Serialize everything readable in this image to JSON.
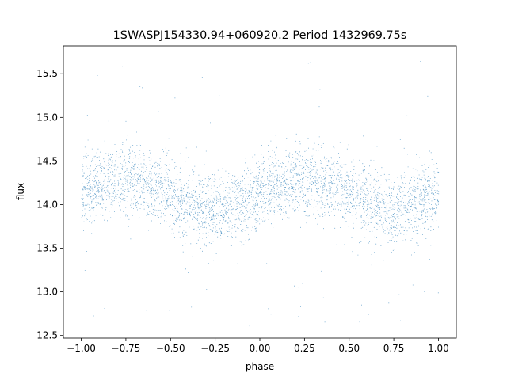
{
  "chart_data": {
    "type": "scatter",
    "title": "1SWASPJ154330.94+060920.2 Period 1432969.75s",
    "xlabel": "phase",
    "ylabel": "flux",
    "xlim": [
      -1.1,
      1.1
    ],
    "ylim": [
      12.47,
      15.82
    ],
    "x_ticks": [
      -1.0,
      -0.75,
      -0.5,
      -0.25,
      0.0,
      0.25,
      0.5,
      0.75,
      1.0
    ],
    "x_tick_labels": [
      "−1.00",
      "−0.75",
      "−0.50",
      "−0.25",
      "0.00",
      "0.25",
      "0.50",
      "0.75",
      "1.00"
    ],
    "y_ticks": [
      12.5,
      13.0,
      13.5,
      14.0,
      14.5,
      15.0,
      15.5
    ],
    "y_tick_labels": [
      "12.5",
      "13.0",
      "13.5",
      "14.0",
      "14.5",
      "15.0",
      "15.5"
    ],
    "grid": false,
    "marker_color": "#1f77b4",
    "series": [
      {
        "x_range": [
          -1.0,
          1.0
        ],
        "trend_x": [
          -1.0,
          -0.9,
          -0.8,
          -0.7,
          -0.6,
          -0.5,
          -0.4,
          -0.3,
          -0.25,
          -0.2,
          -0.1,
          0.0,
          0.1,
          0.2,
          0.3,
          0.4,
          0.5,
          0.6,
          0.7,
          0.75,
          0.8,
          0.9,
          1.0
        ],
        "trend_y": [
          14.15,
          14.2,
          14.28,
          14.3,
          14.22,
          14.08,
          14.0,
          13.95,
          13.92,
          13.95,
          14.02,
          14.1,
          14.18,
          14.25,
          14.3,
          14.22,
          14.1,
          14.0,
          13.95,
          13.92,
          13.96,
          14.03,
          14.1
        ],
        "typical_spread": 0.2,
        "y_extent": [
          12.6,
          15.65
        ]
      }
    ]
  }
}
